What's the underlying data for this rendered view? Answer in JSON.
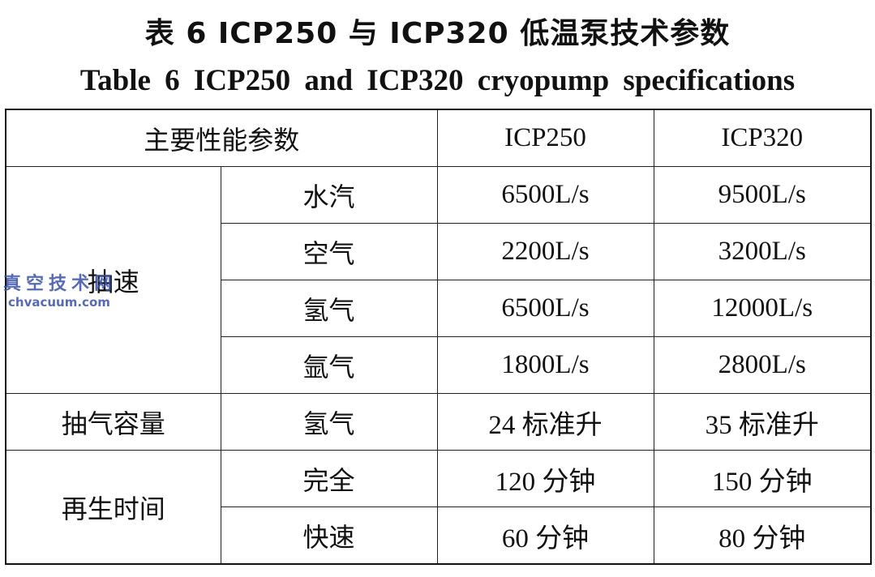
{
  "title": {
    "cn": "表 6   ICP250 与 ICP320 低温泵技术参数",
    "en": "Table 6   ICP250 and ICP320 cryopump specifications"
  },
  "header": {
    "param": "主要性能参数",
    "col1": "ICP250",
    "col2": "ICP320"
  },
  "groups": {
    "speed": "抽速",
    "capacity": "抽气容量",
    "regen": "再生时间"
  },
  "rows": [
    {
      "sub": "水汽",
      "v1": "6500L/s",
      "v2": "9500L/s"
    },
    {
      "sub": "空气",
      "v1": "2200L/s",
      "v2": "3200L/s"
    },
    {
      "sub": "氢气",
      "v1": "6500L/s",
      "v2": "12000L/s"
    },
    {
      "sub": "氩气",
      "v1": "1800L/s",
      "v2": "2800L/s"
    },
    {
      "sub": "氢气",
      "v1": "24 标准升",
      "v2": "35 标准升"
    },
    {
      "sub": "完全",
      "v1": "120 分钟",
      "v2": "150 分钟"
    },
    {
      "sub": "快速",
      "v1": "60 分钟",
      "v2": "80 分钟"
    }
  ],
  "watermark": {
    "cn": "真空技术网",
    "site": "chvacuum.com"
  }
}
